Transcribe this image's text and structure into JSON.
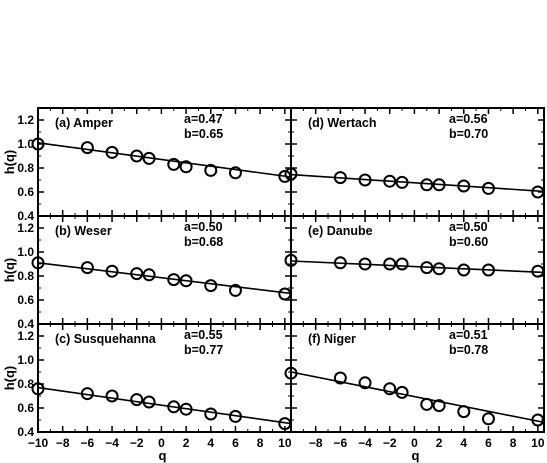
{
  "figure": {
    "xlabel": "q",
    "ylabel": "h(q)"
  },
  "chart_data": [
    {
      "type": "line",
      "title": "(a) Amper",
      "params": {
        "a": "a=0.47",
        "b": "b=0.65"
      },
      "xlim": [
        -10,
        10.5
      ],
      "ylim": [
        0.4,
        1.3
      ],
      "yticks": [
        "1.2",
        "1.0",
        "0.8",
        "0.6",
        "0.4"
      ],
      "ytick_values": [
        1.2,
        1.0,
        0.8,
        0.6,
        0.4
      ],
      "points": {
        "x": [
          -10,
          -6,
          -4,
          -2,
          -1,
          1,
          2,
          4,
          6,
          10
        ],
        "y": [
          1.0,
          0.97,
          0.93,
          0.9,
          0.88,
          0.83,
          0.81,
          0.78,
          0.76,
          0.73
        ]
      },
      "fit": {
        "x": [
          -10,
          10.5
        ],
        "y": [
          1.01,
          0.725
        ]
      }
    },
    {
      "type": "line",
      "title": "(b) Weser",
      "params": {
        "a": "a=0.50",
        "b": "b=0.68"
      },
      "xlim": [
        -10,
        10.5
      ],
      "ylim": [
        0.4,
        1.3
      ],
      "yticks": [
        "1.2",
        "1.0",
        "0.8",
        "0.6",
        "0.4"
      ],
      "ytick_values": [
        1.2,
        1.0,
        0.8,
        0.6,
        0.4
      ],
      "points": {
        "x": [
          -10,
          -6,
          -4,
          -2,
          -1,
          1,
          2,
          4,
          6,
          10
        ],
        "y": [
          0.91,
          0.87,
          0.84,
          0.82,
          0.81,
          0.77,
          0.76,
          0.72,
          0.68,
          0.65
        ]
      },
      "fit": {
        "x": [
          -10,
          10.5
        ],
        "y": [
          0.91,
          0.655
        ]
      }
    },
    {
      "type": "line",
      "title": "(c) Susquehanna",
      "params": {
        "a": "a=0.55",
        "b": "b=0.77"
      },
      "xlim": [
        -10,
        10.5
      ],
      "ylim": [
        0.4,
        1.3
      ],
      "yticks": [
        "1.2",
        "1.0",
        "0.8",
        "0.6",
        "0.4"
      ],
      "ytick_values": [
        1.2,
        1.0,
        0.8,
        0.6,
        0.4
      ],
      "points": {
        "x": [
          -10,
          -6,
          -4,
          -2,
          -1,
          1,
          2,
          4,
          6,
          10
        ],
        "y": [
          0.76,
          0.72,
          0.7,
          0.67,
          0.65,
          0.61,
          0.59,
          0.55,
          0.53,
          0.47
        ]
      },
      "fit": {
        "x": [
          -10,
          10.5
        ],
        "y": [
          0.77,
          0.47
        ]
      }
    },
    {
      "type": "line",
      "title": "(d) Wertach",
      "params": {
        "a": "a=0.56",
        "b": "b=0.70"
      },
      "xlim": [
        -10,
        10.5
      ],
      "ylim": [
        0.4,
        1.3
      ],
      "yticks": [],
      "ytick_values": [
        1.2,
        1.0,
        0.8,
        0.6,
        0.4
      ],
      "points": {
        "x": [
          -10,
          -6,
          -4,
          -2,
          -1,
          1,
          2,
          4,
          6,
          10
        ],
        "y": [
          0.75,
          0.72,
          0.7,
          0.69,
          0.68,
          0.66,
          0.66,
          0.65,
          0.63,
          0.6
        ]
      },
      "fit": {
        "x": [
          -10,
          10.5
        ],
        "y": [
          0.745,
          0.605
        ]
      }
    },
    {
      "type": "line",
      "title": "(e) Danube",
      "params": {
        "a": "a=0.50",
        "b": "b=0.60"
      },
      "xlim": [
        -10,
        10.5
      ],
      "ylim": [
        0.4,
        1.3
      ],
      "yticks": [],
      "ytick_values": [
        1.2,
        1.0,
        0.8,
        0.6,
        0.4
      ],
      "points": {
        "x": [
          -10,
          -6,
          -4,
          -2,
          -1,
          1,
          2,
          4,
          6,
          10
        ],
        "y": [
          0.93,
          0.91,
          0.9,
          0.9,
          0.9,
          0.87,
          0.86,
          0.85,
          0.85,
          0.84
        ]
      },
      "fit": {
        "x": [
          -10,
          10.5
        ],
        "y": [
          0.925,
          0.83
        ]
      }
    },
    {
      "type": "line",
      "title": "(f) Niger",
      "params": {
        "a": "a=0.51",
        "b": "b=0.78"
      },
      "xlim": [
        -10,
        10.5
      ],
      "ylim": [
        0.4,
        1.3
      ],
      "yticks": [],
      "ytick_values": [
        1.2,
        1.0,
        0.8,
        0.6,
        0.4
      ],
      "points": {
        "x": [
          -10,
          -6,
          -4,
          -2,
          -1,
          1,
          2,
          4,
          6,
          10
        ],
        "y": [
          0.89,
          0.85,
          0.81,
          0.76,
          0.73,
          0.63,
          0.62,
          0.57,
          0.51,
          0.5
        ]
      },
      "fit": {
        "x": [
          -10,
          10.5
        ],
        "y": [
          0.9,
          0.48
        ]
      }
    }
  ],
  "xticks": {
    "left": {
      "values": [
        -10,
        -8,
        -6,
        -4,
        -2,
        0,
        2,
        4,
        6,
        8,
        10
      ],
      "labels": [
        "−10",
        "−8",
        "−6",
        "−4",
        "−2",
        "0",
        "2",
        "4",
        "6",
        "8",
        "10"
      ]
    },
    "right": {
      "values": [
        -8,
        -6,
        -4,
        -2,
        0,
        2,
        4,
        6,
        8,
        10
      ],
      "labels": [
        "−8",
        "−6",
        "−4",
        "−2",
        "0",
        "2",
        "4",
        "6",
        "8",
        "10"
      ]
    }
  }
}
